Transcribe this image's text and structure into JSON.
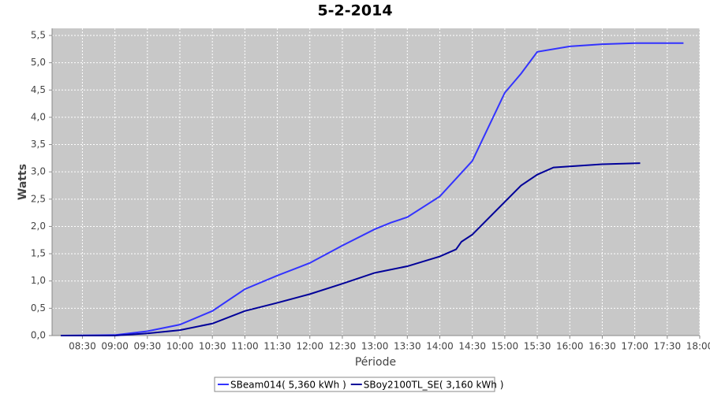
{
  "chart_data": {
    "type": "line",
    "title": "5-2-2014",
    "x_label": "Période",
    "y_label": "Watts",
    "xlim": [
      "08:02",
      "18:00"
    ],
    "xticks": [
      "08:30",
      "09:00",
      "09:30",
      "10:00",
      "10:30",
      "11:00",
      "11:30",
      "12:00",
      "12:30",
      "13:00",
      "13:30",
      "14:00",
      "14:30",
      "15:00",
      "15:30",
      "16:00",
      "16:30",
      "17:00",
      "17:30",
      "18:00"
    ],
    "ylim": [
      0,
      5.63
    ],
    "yticks": [
      {
        "value": 0,
        "label": "0,0"
      },
      {
        "value": 0.5,
        "label": "0,5"
      },
      {
        "value": 1,
        "label": "1,0"
      },
      {
        "value": 1.5,
        "label": "1,5"
      },
      {
        "value": 2,
        "label": "2,0"
      },
      {
        "value": 2.5,
        "label": "2,5"
      },
      {
        "value": 3,
        "label": "3,0"
      },
      {
        "value": 3.5,
        "label": "3,5"
      },
      {
        "value": 4,
        "label": "4,0"
      },
      {
        "value": 4.5,
        "label": "4,5"
      },
      {
        "value": 5,
        "label": "5,0"
      },
      {
        "value": 5.5,
        "label": "5,5"
      }
    ],
    "grid": true,
    "legend": "bottom",
    "series": [
      {
        "name": "SBeam014( 5,360 kWh )",
        "color": "#3333ff",
        "x": [
          "08:10",
          "09:00",
          "09:30",
          "10:00",
          "10:30",
          "11:00",
          "11:30",
          "12:00",
          "12:30",
          "13:00",
          "13:15",
          "13:30",
          "14:00",
          "14:30",
          "15:00",
          "15:15",
          "15:30",
          "16:00",
          "16:30",
          "17:00",
          "17:45"
        ],
        "values": [
          0,
          0.01,
          0.08,
          0.2,
          0.45,
          0.85,
          1.1,
          1.33,
          1.65,
          1.95,
          2.07,
          2.17,
          2.55,
          3.2,
          4.45,
          4.8,
          5.2,
          5.3,
          5.34,
          5.36,
          5.36
        ]
      },
      {
        "name": "SBoy2100TL_SE( 3,160 kWh )",
        "color": "#000099",
        "x": [
          "08:10",
          "09:00",
          "09:30",
          "10:00",
          "10:30",
          "11:00",
          "11:30",
          "12:00",
          "12:30",
          "13:00",
          "13:30",
          "14:00",
          "14:15",
          "14:20",
          "14:30",
          "15:00",
          "15:15",
          "15:30",
          "15:45",
          "16:30",
          "17:05"
        ],
        "values": [
          0,
          0,
          0.04,
          0.1,
          0.22,
          0.45,
          0.6,
          0.76,
          0.95,
          1.15,
          1.27,
          1.45,
          1.58,
          1.72,
          1.85,
          2.45,
          2.75,
          2.95,
          3.08,
          3.14,
          3.16
        ]
      }
    ]
  }
}
